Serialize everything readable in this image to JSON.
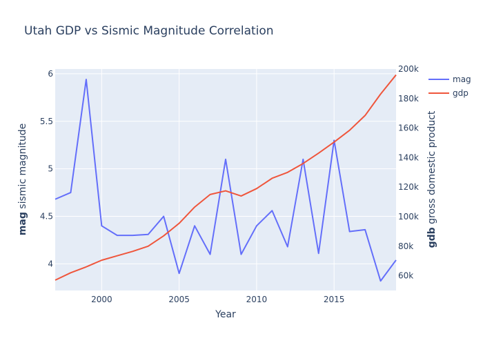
{
  "chart_data": {
    "type": "line",
    "title": "Utah GDP vs Sismic Magnitude Correlation",
    "xlabel": "Year",
    "y_left_label": {
      "bold": "mag",
      "rest": " sismic magnitude"
    },
    "y_right_label": {
      "bold": "gdb",
      "rest": " gross domestic product"
    },
    "x": [
      1997,
      1998,
      1999,
      2000,
      2001,
      2002,
      2003,
      2004,
      2005,
      2006,
      2007,
      2008,
      2009,
      2010,
      2011,
      2012,
      2013,
      2014,
      2015,
      2016,
      2017,
      2018,
      2019
    ],
    "xlim": [
      1997,
      2019
    ],
    "ylim_left": [
      3.72,
      6.05
    ],
    "ylim_right": [
      50000,
      200000
    ],
    "x_ticks": [
      2000,
      2005,
      2010,
      2015
    ],
    "y_left_ticks": [
      4,
      4.5,
      5,
      5.5,
      6
    ],
    "y_right_ticks": [
      60000,
      80000,
      100000,
      120000,
      140000,
      160000,
      180000,
      200000
    ],
    "y_right_tick_labels": [
      "60k",
      "80k",
      "100k",
      "120k",
      "140k",
      "160k",
      "180k",
      "200k"
    ],
    "series": [
      {
        "name": "mag",
        "axis": "left",
        "color": "#636efa",
        "values": [
          4.68,
          4.75,
          5.94,
          4.4,
          4.3,
          4.3,
          4.31,
          4.5,
          3.9,
          4.4,
          4.1,
          5.1,
          4.1,
          4.4,
          4.56,
          4.18,
          5.1,
          4.11,
          5.3,
          4.34,
          4.36,
          3.82,
          4.04
        ]
      },
      {
        "name": "gdp",
        "axis": "right",
        "color": "#ef553b",
        "values": [
          57000,
          62000,
          66000,
          70500,
          73500,
          76500,
          80000,
          87000,
          95500,
          106500,
          115000,
          117500,
          114000,
          119000,
          126000,
          130000,
          136000,
          143000,
          150500,
          158500,
          168500,
          183000,
          196000
        ]
      }
    ],
    "grid": true,
    "legend_position": "top-right",
    "plot_background": "#e5ecf6"
  }
}
